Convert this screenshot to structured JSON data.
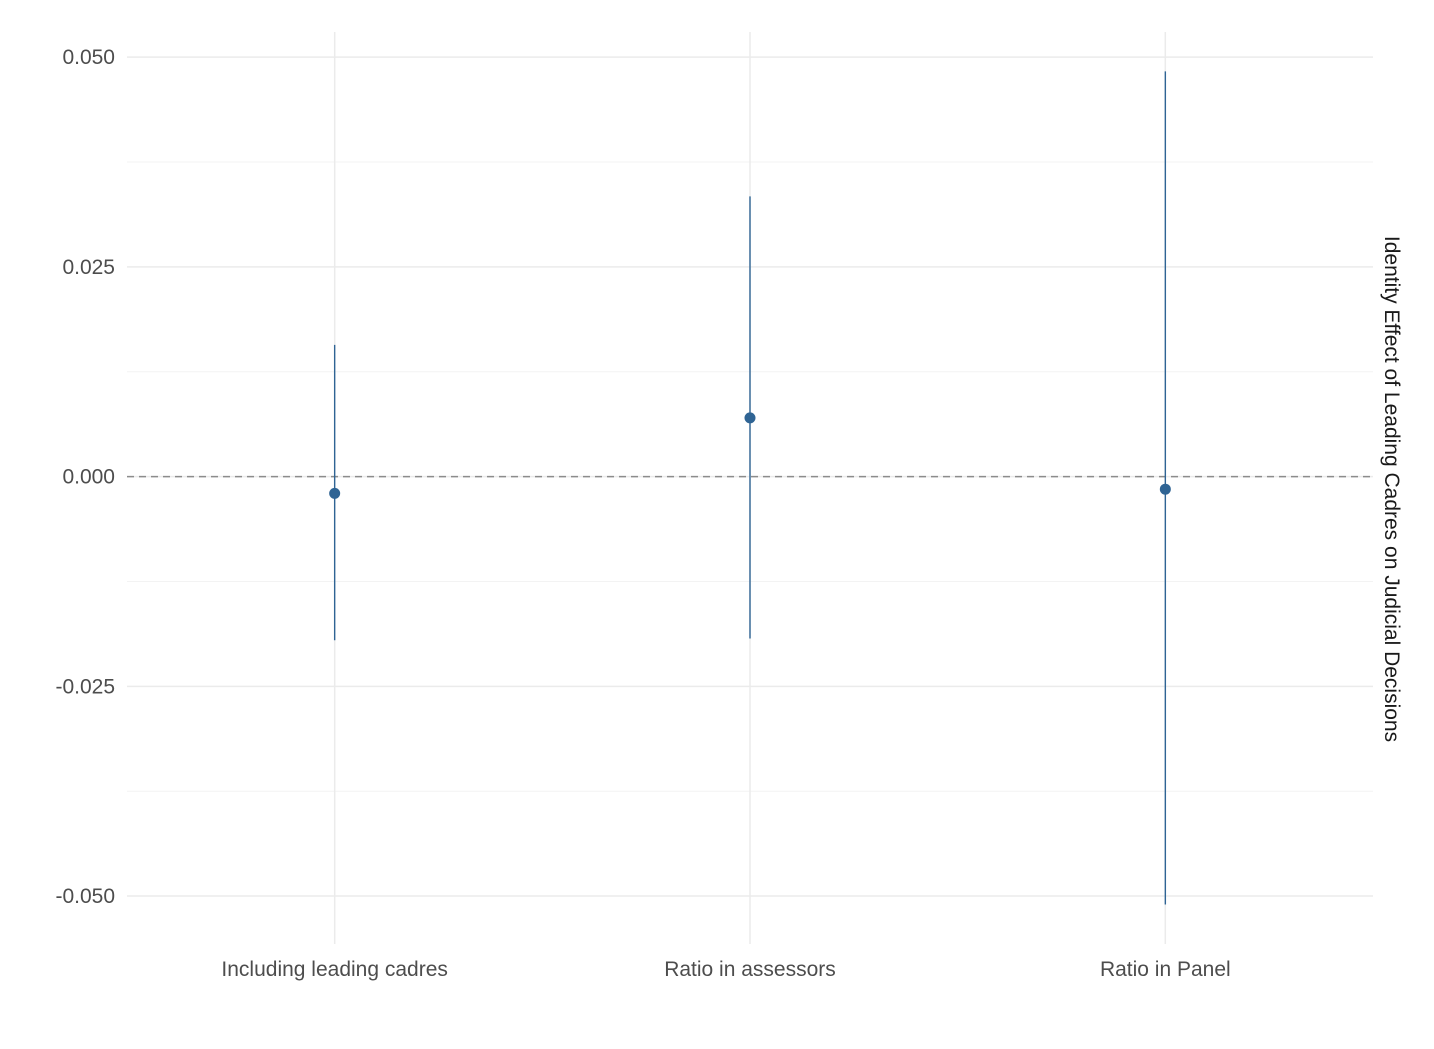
{
  "chart_data": {
    "type": "errorbar",
    "title": "",
    "xlabel": "",
    "ylabel": "Identity Effect of Leading Cadres on Judicial Decisions",
    "ylabel_position": "right",
    "categories": [
      "Including leading cadres",
      "Ratio in assessors",
      "Ratio in Panel"
    ],
    "estimates": [
      -0.002,
      0.007,
      -0.0015
    ],
    "ci_low": [
      -0.0195,
      -0.0193,
      -0.051
    ],
    "ci_high": [
      0.0157,
      0.0334,
      0.0483
    ],
    "reference_line": 0.0,
    "ylim": [
      -0.055,
      0.053
    ],
    "yticks": [
      -0.05,
      -0.025,
      0.0,
      0.025,
      0.05
    ],
    "ytick_labels": [
      "-0.050",
      "-0.025",
      "0.000",
      "0.025",
      "0.050"
    ],
    "grid": true,
    "legend": "none",
    "colors": {
      "series": "#2f6494",
      "grid_major": "#ebebeb",
      "grid_minor": "#f3f3f3",
      "reference": "#8c8c8c",
      "tick_text": "#4d4d4d",
      "title_text": "#1a1a1a"
    }
  }
}
